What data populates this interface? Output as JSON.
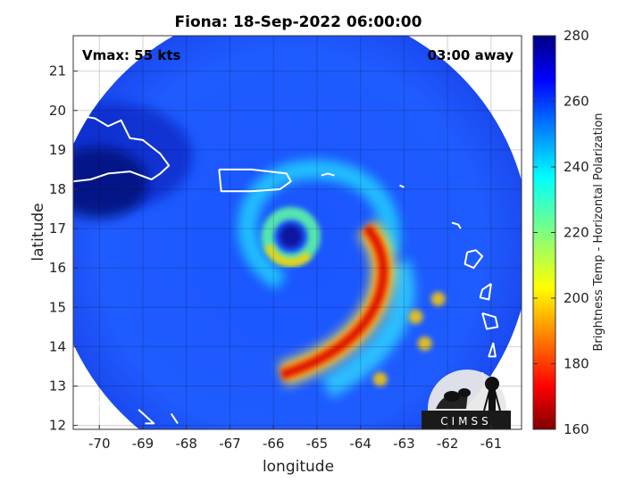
{
  "chart_data": {
    "type": "heatmap",
    "title": "Fiona: 18-Sep-2022 06:00:00",
    "xlabel": "longitude",
    "ylabel": "latitude",
    "xlim": [
      -70.6,
      -60.3
    ],
    "ylim": [
      11.9,
      21.9
    ],
    "xticks": [
      -70,
      -69,
      -68,
      -67,
      -66,
      -65,
      -64,
      -63,
      -62,
      -61
    ],
    "yticks": [
      12,
      13,
      14,
      15,
      16,
      17,
      18,
      19,
      20,
      21
    ],
    "colorbar": {
      "label": "Brightness Temp - Horizontal Polarization",
      "range": [
        160,
        280
      ],
      "ticks": [
        160,
        180,
        200,
        220,
        240,
        260,
        280
      ],
      "colormap": "jet"
    },
    "annotations": {
      "vmax": "Vmax: 55 kts",
      "time_offset": "03:00 away"
    },
    "storm_center": {
      "lon": -65.6,
      "lat": 16.8
    },
    "swath": {
      "center_lon": -65.6,
      "center_lat": 16.6,
      "radius_deg": 5.5
    },
    "grid": true,
    "logo_text": "CIMSS"
  }
}
